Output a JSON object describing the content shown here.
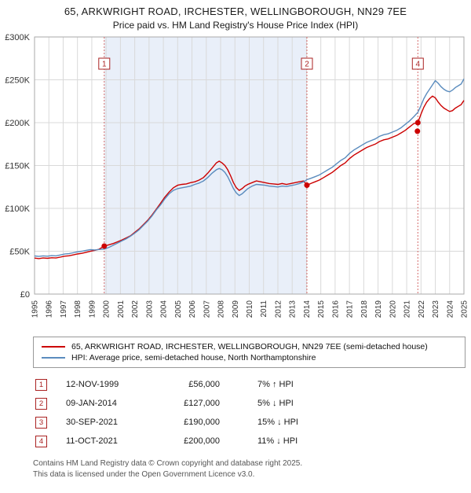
{
  "title": "65, ARKWRIGHT ROAD, IRCHESTER, WELLINGBOROUGH, NN29 7EE",
  "subtitle": "Price paid vs. HM Land Registry's House Price Index (HPI)",
  "chart_data": {
    "type": "line",
    "x_range": [
      1995,
      2025
    ],
    "ylim": [
      0,
      300
    ],
    "y_ticks": [
      0,
      50,
      100,
      150,
      200,
      250,
      300
    ],
    "y_tick_labels": [
      "£0",
      "£50K",
      "£100K",
      "£150K",
      "£200K",
      "£250K",
      "£300K"
    ],
    "x_ticks": [
      1995,
      1996,
      1997,
      1998,
      1999,
      2000,
      2001,
      2002,
      2003,
      2004,
      2005,
      2006,
      2007,
      2008,
      2009,
      2010,
      2011,
      2012,
      2013,
      2014,
      2015,
      2016,
      2017,
      2018,
      2019,
      2020,
      2021,
      2022,
      2023,
      2024,
      2025
    ],
    "grid": true,
    "shaded_region": [
      1999.87,
      2014.03
    ],
    "event_lines": [
      {
        "x": 1999.87,
        "label": "1"
      },
      {
        "x": 2014.03,
        "label": "2"
      },
      {
        "x": 2021.78,
        "label": "4"
      }
    ],
    "sale_points": [
      [
        1999.87,
        56
      ],
      [
        2014.03,
        127
      ],
      [
        2021.75,
        190
      ],
      [
        2021.78,
        200
      ]
    ],
    "colors": {
      "red": "#cc0000",
      "blue": "#5b8cbe",
      "shade": "#e9eff9",
      "grid": "#d9d9d9",
      "dotted": "#d46a6a",
      "marker_box": "#aa2222"
    },
    "series": [
      {
        "name": "price-paid",
        "color": "#cc0000",
        "points": [
          [
            1995,
            42
          ],
          [
            1995.3,
            41.4
          ],
          [
            1995.6,
            42.1
          ],
          [
            1995.9,
            41.7
          ],
          [
            1996.2,
            42.4
          ],
          [
            1996.5,
            42.1
          ],
          [
            1996.8,
            43.1
          ],
          [
            1997.1,
            44.2
          ],
          [
            1997.4,
            44.7
          ],
          [
            1997.7,
            45.7
          ],
          [
            1998,
            46.8
          ],
          [
            1998.3,
            47.5
          ],
          [
            1998.6,
            48.7
          ],
          [
            1998.9,
            49.9
          ],
          [
            1999.2,
            50.9
          ],
          [
            1999.5,
            52.3
          ],
          [
            1999.87,
            56
          ],
          [
            2000.2,
            57.5
          ],
          [
            2000.5,
            59
          ],
          [
            2000.8,
            61
          ],
          [
            2001.1,
            63
          ],
          [
            2001.4,
            65.5
          ],
          [
            2001.7,
            68
          ],
          [
            2002,
            72
          ],
          [
            2002.3,
            76
          ],
          [
            2002.6,
            81
          ],
          [
            2002.9,
            86
          ],
          [
            2003.2,
            92
          ],
          [
            2003.5,
            99
          ],
          [
            2003.8,
            106
          ],
          [
            2004.1,
            113
          ],
          [
            2004.4,
            119
          ],
          [
            2004.7,
            124
          ],
          [
            2005,
            127
          ],
          [
            2005.3,
            128
          ],
          [
            2005.6,
            128.5
          ],
          [
            2005.9,
            130
          ],
          [
            2006.2,
            131
          ],
          [
            2006.5,
            133
          ],
          [
            2006.8,
            136
          ],
          [
            2007.1,
            141
          ],
          [
            2007.4,
            147
          ],
          [
            2007.7,
            153
          ],
          [
            2007.9,
            155
          ],
          [
            2008.1,
            153
          ],
          [
            2008.3,
            150
          ],
          [
            2008.5,
            145
          ],
          [
            2008.7,
            138
          ],
          [
            2008.9,
            130
          ],
          [
            2009.1,
            124
          ],
          [
            2009.3,
            121
          ],
          [
            2009.5,
            123
          ],
          [
            2009.7,
            126
          ],
          [
            2009.9,
            128
          ],
          [
            2010.2,
            130
          ],
          [
            2010.5,
            132
          ],
          [
            2010.8,
            131
          ],
          [
            2011.1,
            130
          ],
          [
            2011.4,
            129
          ],
          [
            2011.7,
            128.5
          ],
          [
            2012,
            128
          ],
          [
            2012.3,
            129
          ],
          [
            2012.6,
            128
          ],
          [
            2012.9,
            129
          ],
          [
            2013.2,
            130
          ],
          [
            2013.5,
            131
          ],
          [
            2013.8,
            132
          ],
          [
            2014.03,
            127
          ],
          [
            2014.3,
            129
          ],
          [
            2014.6,
            131
          ],
          [
            2014.9,
            133
          ],
          [
            2015.2,
            136
          ],
          [
            2015.5,
            139
          ],
          [
            2015.8,
            142
          ],
          [
            2016.1,
            146
          ],
          [
            2016.4,
            150
          ],
          [
            2016.7,
            153
          ],
          [
            2017,
            158
          ],
          [
            2017.3,
            162
          ],
          [
            2017.6,
            165
          ],
          [
            2017.9,
            168
          ],
          [
            2018.2,
            171
          ],
          [
            2018.5,
            173
          ],
          [
            2018.8,
            175
          ],
          [
            2019.1,
            178
          ],
          [
            2019.4,
            180
          ],
          [
            2019.7,
            181
          ],
          [
            2020,
            183
          ],
          [
            2020.3,
            185
          ],
          [
            2020.6,
            188
          ],
          [
            2020.9,
            191
          ],
          [
            2021.2,
            195
          ],
          [
            2021.5,
            199
          ],
          [
            2021.78,
            200
          ],
          [
            2022,
            210
          ],
          [
            2022.2,
            218
          ],
          [
            2022.4,
            224
          ],
          [
            2022.6,
            228
          ],
          [
            2022.8,
            231
          ],
          [
            2023,
            229
          ],
          [
            2023.2,
            224
          ],
          [
            2023.4,
            220
          ],
          [
            2023.6,
            217
          ],
          [
            2023.8,
            215
          ],
          [
            2024,
            213
          ],
          [
            2024.2,
            214
          ],
          [
            2024.4,
            217
          ],
          [
            2024.6,
            219
          ],
          [
            2024.8,
            221
          ],
          [
            2025,
            226
          ]
        ]
      },
      {
        "name": "hpi",
        "color": "#5b8cbe",
        "points": [
          [
            1995,
            44.5
          ],
          [
            1995.3,
            43.9
          ],
          [
            1995.6,
            44.6
          ],
          [
            1995.9,
            44.2
          ],
          [
            1996.2,
            44.9
          ],
          [
            1996.5,
            44.6
          ],
          [
            1996.8,
            45.6
          ],
          [
            1997.1,
            46.7
          ],
          [
            1997.4,
            47.2
          ],
          [
            1997.7,
            48.2
          ],
          [
            1998,
            49.3
          ],
          [
            1998.3,
            50
          ],
          [
            1998.6,
            51
          ],
          [
            1998.9,
            51.8
          ],
          [
            1999.2,
            51.5
          ],
          [
            1999.5,
            52
          ],
          [
            1999.87,
            52.5
          ],
          [
            2000.2,
            54.5
          ],
          [
            2000.5,
            57
          ],
          [
            2000.8,
            59.5
          ],
          [
            2001.1,
            62
          ],
          [
            2001.4,
            64.5
          ],
          [
            2001.7,
            67.5
          ],
          [
            2002,
            71
          ],
          [
            2002.3,
            75
          ],
          [
            2002.6,
            80
          ],
          [
            2002.9,
            85
          ],
          [
            2003.2,
            91
          ],
          [
            2003.5,
            98
          ],
          [
            2003.8,
            104
          ],
          [
            2004.1,
            111
          ],
          [
            2004.4,
            117
          ],
          [
            2004.7,
            121
          ],
          [
            2005,
            123
          ],
          [
            2005.3,
            124
          ],
          [
            2005.6,
            125
          ],
          [
            2005.9,
            126
          ],
          [
            2006.2,
            128
          ],
          [
            2006.5,
            129.5
          ],
          [
            2006.8,
            132
          ],
          [
            2007.1,
            136
          ],
          [
            2007.4,
            141
          ],
          [
            2007.7,
            145
          ],
          [
            2007.9,
            146.5
          ],
          [
            2008.1,
            145
          ],
          [
            2008.3,
            142
          ],
          [
            2008.5,
            137
          ],
          [
            2008.7,
            130
          ],
          [
            2008.9,
            123
          ],
          [
            2009.1,
            118
          ],
          [
            2009.3,
            115
          ],
          [
            2009.5,
            117
          ],
          [
            2009.7,
            120
          ],
          [
            2009.9,
            123
          ],
          [
            2010.2,
            126
          ],
          [
            2010.5,
            128
          ],
          [
            2010.8,
            127.5
          ],
          [
            2011.1,
            127
          ],
          [
            2011.4,
            126
          ],
          [
            2011.7,
            125.5
          ],
          [
            2012,
            125
          ],
          [
            2012.3,
            126
          ],
          [
            2012.6,
            125.5
          ],
          [
            2012.9,
            126.5
          ],
          [
            2013.2,
            127.5
          ],
          [
            2013.5,
            129
          ],
          [
            2013.8,
            131
          ],
          [
            2014.03,
            133.5
          ],
          [
            2014.3,
            135
          ],
          [
            2014.6,
            137
          ],
          [
            2014.9,
            139
          ],
          [
            2015.2,
            142
          ],
          [
            2015.5,
            145
          ],
          [
            2015.8,
            148
          ],
          [
            2016.1,
            152
          ],
          [
            2016.4,
            156
          ],
          [
            2016.7,
            159
          ],
          [
            2017,
            164
          ],
          [
            2017.3,
            168
          ],
          [
            2017.6,
            171
          ],
          [
            2017.9,
            174
          ],
          [
            2018.2,
            177
          ],
          [
            2018.5,
            179
          ],
          [
            2018.8,
            181
          ],
          [
            2019.1,
            184
          ],
          [
            2019.4,
            186
          ],
          [
            2019.7,
            187
          ],
          [
            2020,
            189
          ],
          [
            2020.3,
            191
          ],
          [
            2020.6,
            194
          ],
          [
            2020.9,
            198
          ],
          [
            2021.2,
            202
          ],
          [
            2021.5,
            207
          ],
          [
            2021.78,
            212
          ],
          [
            2022,
            220
          ],
          [
            2022.2,
            228
          ],
          [
            2022.4,
            234
          ],
          [
            2022.6,
            239
          ],
          [
            2022.8,
            244
          ],
          [
            2023,
            249
          ],
          [
            2023.2,
            246
          ],
          [
            2023.4,
            242
          ],
          [
            2023.6,
            239
          ],
          [
            2023.8,
            237
          ],
          [
            2024,
            236
          ],
          [
            2024.2,
            238
          ],
          [
            2024.4,
            241
          ],
          [
            2024.6,
            243
          ],
          [
            2024.8,
            245
          ],
          [
            2025,
            251
          ]
        ]
      }
    ]
  },
  "legend": {
    "items": [
      {
        "label": "65, ARKWRIGHT ROAD, IRCHESTER, WELLINGBOROUGH, NN29 7EE (semi-detached house)",
        "color": "#cc0000"
      },
      {
        "label": "HPI: Average price, semi-detached house, North Northamptonshire",
        "color": "#5b8cbe"
      }
    ]
  },
  "transactions": [
    {
      "num": "1",
      "date": "12-NOV-1999",
      "price": "£56,000",
      "hpi": "7% ↑ HPI"
    },
    {
      "num": "2",
      "date": "09-JAN-2014",
      "price": "£127,000",
      "hpi": "5% ↓ HPI"
    },
    {
      "num": "3",
      "date": "30-SEP-2021",
      "price": "£190,000",
      "hpi": "15% ↓ HPI"
    },
    {
      "num": "4",
      "date": "11-OCT-2021",
      "price": "£200,000",
      "hpi": "11% ↓ HPI"
    }
  ],
  "footer": {
    "line1": "Contains HM Land Registry data © Crown copyright and database right 2025.",
    "line2": "This data is licensed under the Open Government Licence v3.0."
  }
}
